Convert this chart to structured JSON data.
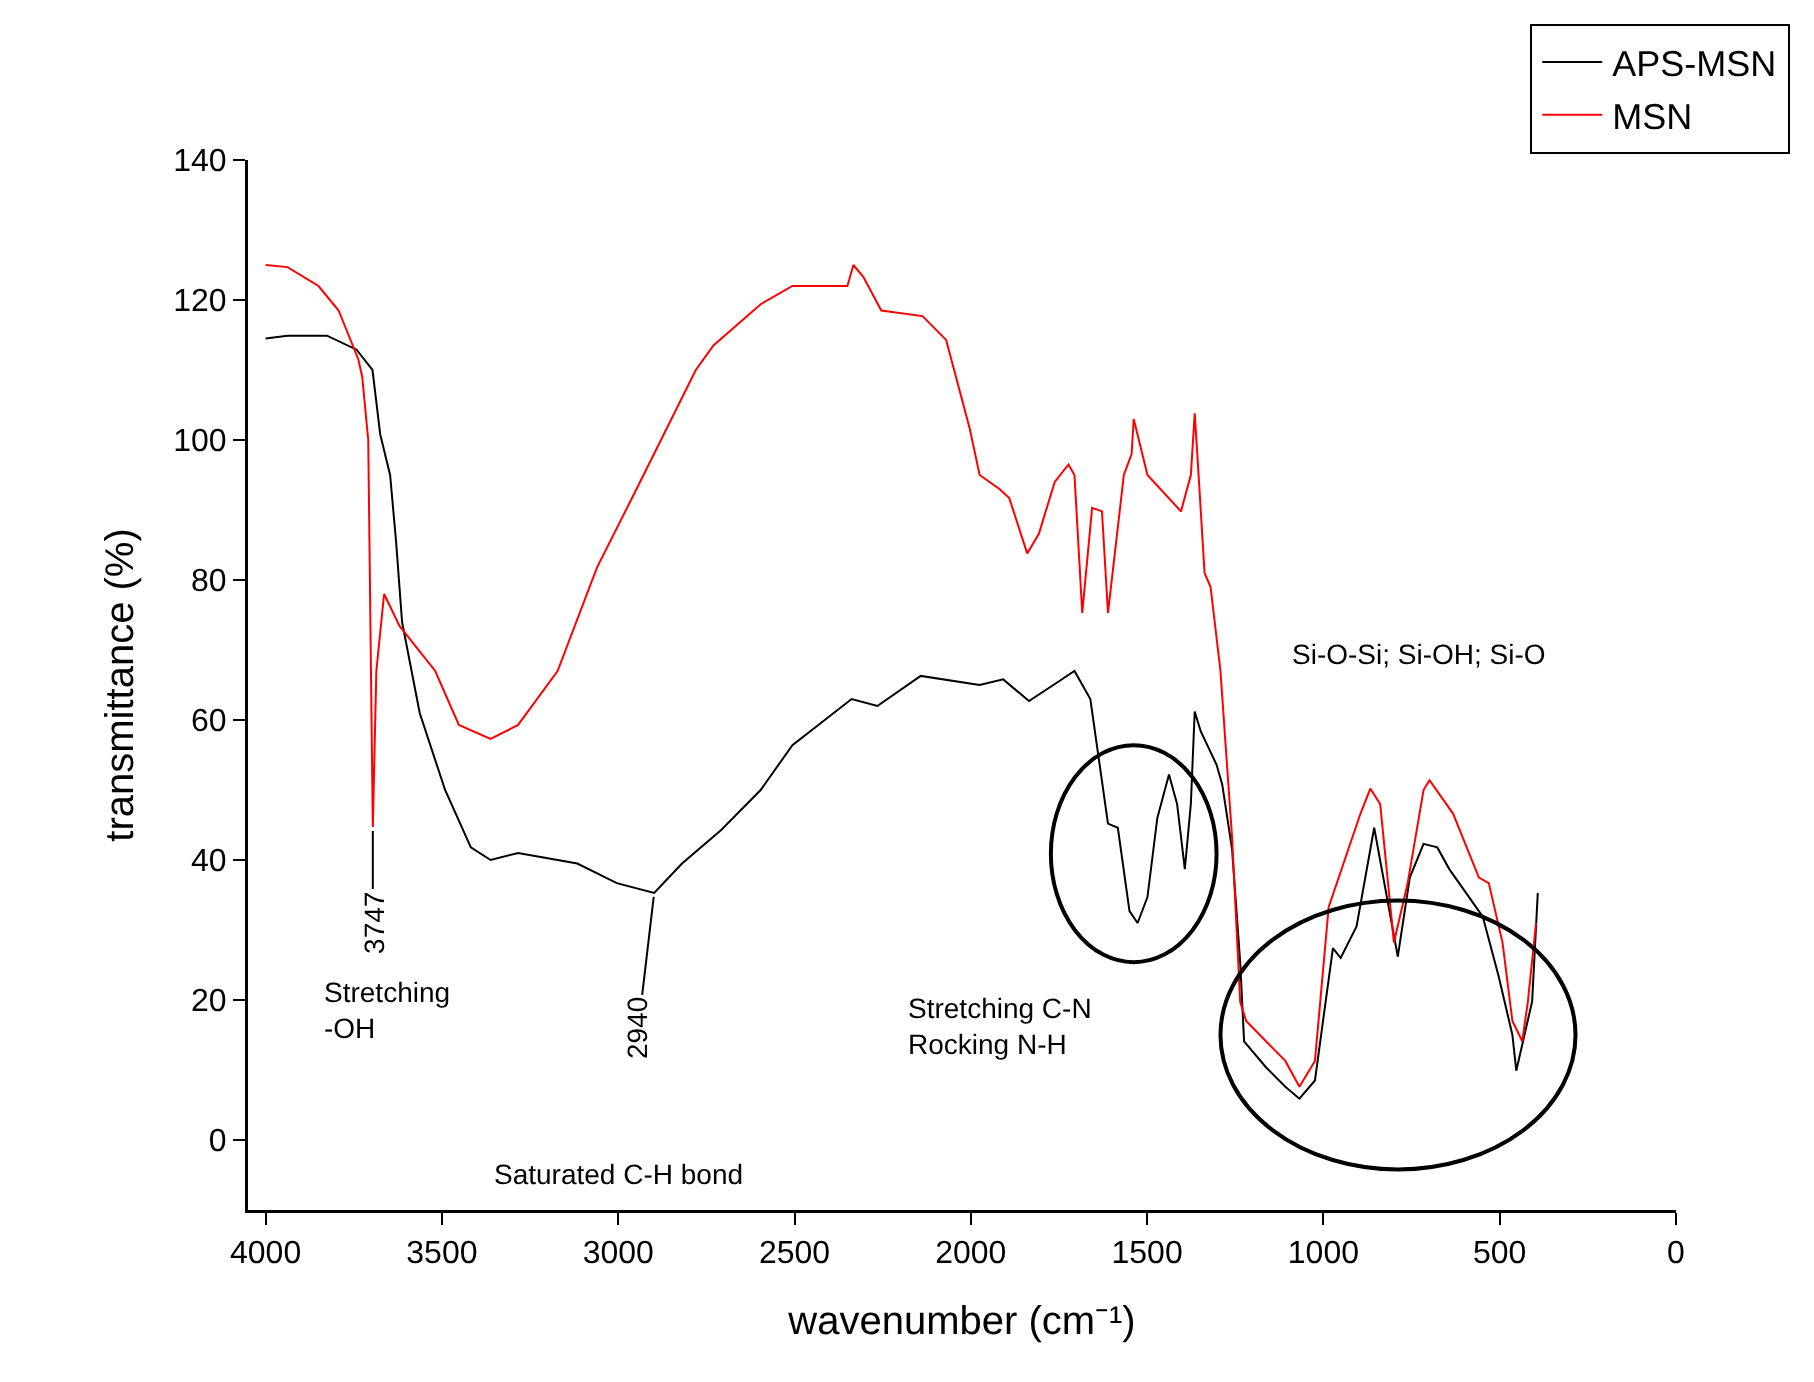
{
  "chart_data": {
    "type": "line",
    "xlabel": "wavenumber (cm⁻¹)",
    "ylabel": "transmittance (%)",
    "xlim": [
      4050,
      0
    ],
    "ylim": [
      -10,
      140
    ],
    "xticks": [
      4000,
      3500,
      3000,
      2500,
      2000,
      1500,
      1000,
      500,
      0
    ],
    "yticks": [
      0,
      20,
      40,
      60,
      80,
      100,
      120,
      140
    ],
    "legend": "top right",
    "line_style": "solid",
    "marker": "none",
    "series": [
      {
        "name": "APS-MSN",
        "color": "#000000",
        "x": [
          4000,
          3938,
          3826,
          3742,
          3697,
          3675,
          3647,
          3630,
          3613,
          3563,
          3491,
          3418,
          3362,
          3284,
          3116,
          3004,
          2898,
          2819,
          2708,
          2596,
          2506,
          2338,
          2265,
          2142,
          1975,
          1908,
          1835,
          1751,
          1706,
          1661,
          1611,
          1583,
          1550,
          1527,
          1499,
          1471,
          1438,
          1415,
          1393,
          1376,
          1365,
          1348,
          1303,
          1287,
          1259,
          1236,
          1225,
          1163,
          1108,
          1068,
          1024,
          973,
          951,
          906,
          856,
          789,
          755,
          716,
          677,
          643,
          587,
          548,
          503,
          464,
          453,
          408,
          392
        ],
        "values": [
          114.5,
          114.9,
          114.9,
          112.9,
          110,
          100.8,
          95,
          85.5,
          74,
          61,
          50,
          41.8,
          40,
          41,
          39.5,
          36.7,
          35.3,
          39.5,
          44.3,
          50,
          56.4,
          63,
          62,
          66.3,
          65,
          65.8,
          62.7,
          65.5,
          67,
          63,
          45.2,
          44.6,
          32.7,
          31,
          34.7,
          46,
          52.2,
          48,
          38.7,
          48,
          61.2,
          58.4,
          53.6,
          50.8,
          41.5,
          25.4,
          14.1,
          10.4,
          7.6,
          5.9,
          8.5,
          27.4,
          26,
          30.5,
          44.6,
          26.2,
          37.5,
          42.3,
          41.8,
          38.7,
          34.7,
          31.9,
          23.4,
          15,
          9.9,
          19.8,
          35.3
        ]
      },
      {
        "name": "MSN",
        "color": "#ff0000",
        "x": [
          4000,
          3938,
          3850,
          3793,
          3737,
          3726,
          3709,
          3696,
          3686,
          3664,
          3620,
          3519,
          3452,
          3362,
          3284,
          3172,
          3060,
          2948,
          2780,
          2730,
          2596,
          2506,
          2350,
          2333,
          2305,
          2254,
          2137,
          2070,
          2003,
          1975,
          1919,
          1891,
          1840,
          1807,
          1762,
          1723,
          1706,
          1684,
          1656,
          1628,
          1611,
          1566,
          1544,
          1538,
          1499,
          1404,
          1376,
          1365,
          1354,
          1337,
          1320,
          1292,
          1259,
          1236,
          1219,
          1163,
          1108,
          1068,
          1024,
          985,
          895,
          867,
          839,
          800,
          761,
          716,
          699,
          632,
          559,
          531,
          492,
          464,
          436,
          420,
          397
        ],
        "values": [
          125,
          124.7,
          122,
          118.5,
          111.5,
          109,
          100,
          44.7,
          67,
          78,
          73.4,
          67,
          59.3,
          57.3,
          59.3,
          67,
          81.8,
          93,
          110,
          113.5,
          119.4,
          122,
          122,
          125,
          123.3,
          118.5,
          117.7,
          114.3,
          101.6,
          95,
          93,
          91.7,
          83.8,
          86.6,
          94,
          96.5,
          95,
          75.3,
          90.3,
          89.8,
          75.3,
          95,
          98,
          103,
          95,
          89.8,
          95,
          103.8,
          95,
          81,
          79,
          67,
          43.2,
          19.7,
          17,
          14.1,
          11.3,
          7.6,
          11.3,
          33.3,
          46.6,
          50.2,
          48,
          28.2,
          36.7,
          50,
          51.4,
          46.6,
          37.5,
          36.7,
          28.2,
          17,
          14.1,
          19.8,
          31
        ]
      }
    ],
    "annotations": [
      {
        "text": "3747",
        "x": 3696,
        "y": 44.7
      },
      {
        "text": "2940",
        "x": 2898,
        "y": 35.3
      },
      "Stretching\n-OH",
      "Saturated C-H bond",
      "Stretching C-N\nRocking N-H",
      "Si-O-Si; Si-OH; Si-O"
    ]
  }
}
